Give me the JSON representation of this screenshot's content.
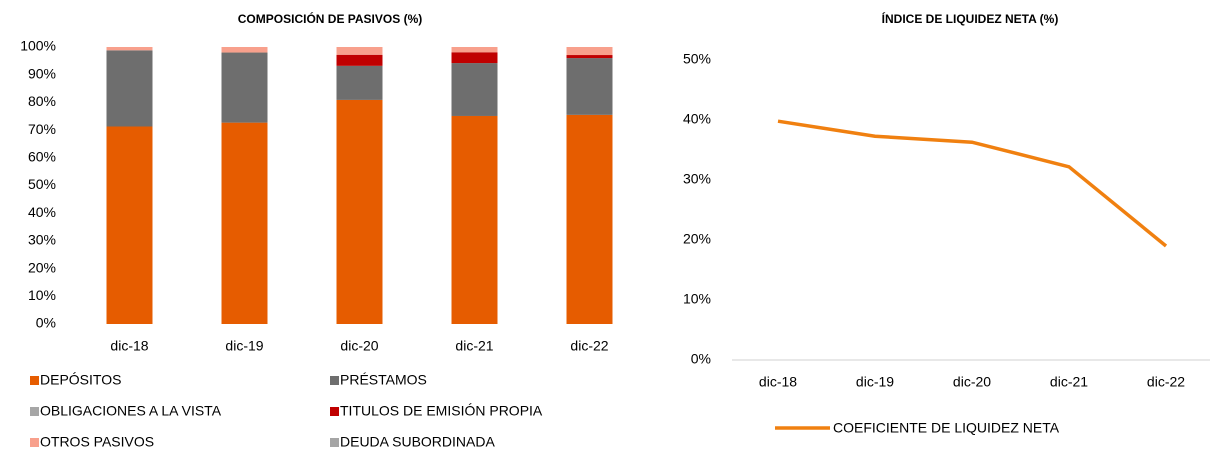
{
  "chart_data": [
    {
      "type": "stacked_bar",
      "title": "COMPOSICIÓN DE PASIVOS (%)",
      "categories": [
        "dic-18",
        "dic-19",
        "dic-20",
        "dic-21",
        "dic-22"
      ],
      "series": [
        {
          "name": "DEPÓSITOS",
          "color": "#E65C00",
          "values": [
            71.3,
            72.7,
            80.9,
            75.1,
            75.5
          ]
        },
        {
          "name": "PRÉSTAMOS",
          "color": "#6E6E6E",
          "values": [
            27.5,
            25.3,
            12.3,
            19.1,
            20.5
          ]
        },
        {
          "name": "OBLIGACIONES A LA VISTA",
          "color": "#A6A6A6",
          "values": [
            0,
            0,
            0,
            0,
            0
          ]
        },
        {
          "name": "TITULOS DE EMISIÓN PROPIA",
          "color": "#C00000",
          "values": [
            0,
            0,
            4.0,
            3.9,
            1.1
          ]
        },
        {
          "name": "OTROS PASIVOS",
          "color": "#F8A08C",
          "values": [
            1.2,
            2.0,
            2.8,
            1.9,
            2.9
          ]
        },
        {
          "name": "DEUDA SUBORDINADA",
          "color": "#A5A5A5",
          "values": [
            0,
            0,
            0,
            0,
            0
          ]
        }
      ],
      "ylim": [
        0,
        100
      ],
      "yticks": [
        {
          "value": 0,
          "label": "0%"
        },
        {
          "value": 10,
          "label": "10%"
        },
        {
          "value": 20,
          "label": "20%"
        },
        {
          "value": 30,
          "label": "30%"
        },
        {
          "value": 40,
          "label": "40%"
        },
        {
          "value": 50,
          "label": "50%"
        },
        {
          "value": 60,
          "label": "60%"
        },
        {
          "value": 70,
          "label": "70%"
        },
        {
          "value": 80,
          "label": "80%"
        },
        {
          "value": 90,
          "label": "90%"
        },
        {
          "value": 100,
          "label": "100%"
        }
      ],
      "legend": "bottom"
    },
    {
      "type": "line",
      "title": "ÍNDICE DE LIQUIDEZ NETA (%)",
      "categories": [
        "dic-18",
        "dic-19",
        "dic-20",
        "dic-21",
        "dic-22"
      ],
      "series": [
        {
          "name": "COEFICIENTE DE LIQUIDEZ NETA",
          "color": "#F08010",
          "values": [
            39.8,
            37.3,
            36.3,
            32.2,
            19.0
          ]
        }
      ],
      "ylim": [
        0,
        50
      ],
      "yticks": [
        {
          "value": 0,
          "label": "0%"
        },
        {
          "value": 10,
          "label": "10%"
        },
        {
          "value": 20,
          "label": "20%"
        },
        {
          "value": 30,
          "label": "30%"
        },
        {
          "value": 40,
          "label": "40%"
        },
        {
          "value": 50,
          "label": "50%"
        }
      ],
      "legend": "bottom"
    }
  ]
}
